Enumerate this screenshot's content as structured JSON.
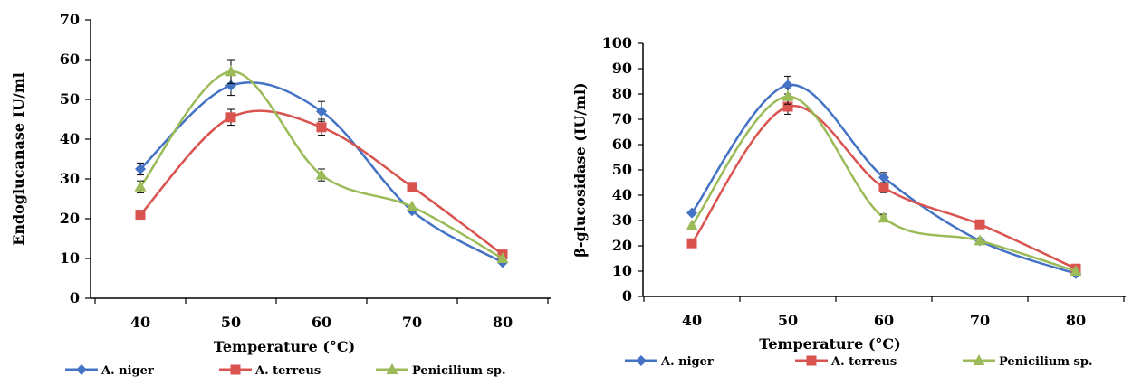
{
  "series_colors": [
    "#4472C4",
    "#D9534F",
    "#9BBB59"
  ],
  "chart_data": [
    {
      "type": "line",
      "xlabel": "Temperature (°C)",
      "ylabel": "Endoglucanase IU/ml",
      "x": [
        40,
        50,
        60,
        70,
        80
      ],
      "ylim": [
        0,
        70
      ],
      "ytick_step": 10,
      "grid": false,
      "legend_placement": "bottom",
      "series": [
        {
          "name": "A. niger",
          "marker": "diamond",
          "values": [
            32.5,
            53.5,
            47,
            22,
            9
          ],
          "errors": [
            1.5,
            2.5,
            2.5,
            0,
            0
          ]
        },
        {
          "name": "A. terreus",
          "marker": "square",
          "values": [
            21,
            45.5,
            43,
            28,
            11
          ],
          "errors": [
            0,
            2,
            2,
            0,
            0
          ]
        },
        {
          "name": "Penicilium sp.",
          "marker": "triangle",
          "values": [
            28,
            57,
            31,
            23,
            10
          ],
          "errors": [
            1.5,
            3,
            1.5,
            0,
            0
          ]
        }
      ]
    },
    {
      "type": "line",
      "xlabel": "Temperature (°C)",
      "ylabel": "β-glucosidase (IU/ml)",
      "x": [
        40,
        50,
        60,
        70,
        80
      ],
      "ylim": [
        0,
        100
      ],
      "ytick_step": 10,
      "grid": false,
      "legend_placement": "bottom",
      "series": [
        {
          "name": "A. niger",
          "marker": "diamond",
          "values": [
            33,
            83.5,
            47,
            22,
            9
          ],
          "errors": [
            0,
            3.5,
            2,
            0,
            0
          ]
        },
        {
          "name": "A. terreus",
          "marker": "square",
          "values": [
            21,
            75,
            43,
            28.5,
            11
          ],
          "errors": [
            0,
            3,
            2,
            0,
            0
          ]
        },
        {
          "name": "Penicilium sp.",
          "marker": "triangle",
          "values": [
            28,
            79,
            31,
            22,
            10
          ],
          "errors": [
            0,
            3,
            1.5,
            0,
            0
          ]
        }
      ]
    }
  ]
}
